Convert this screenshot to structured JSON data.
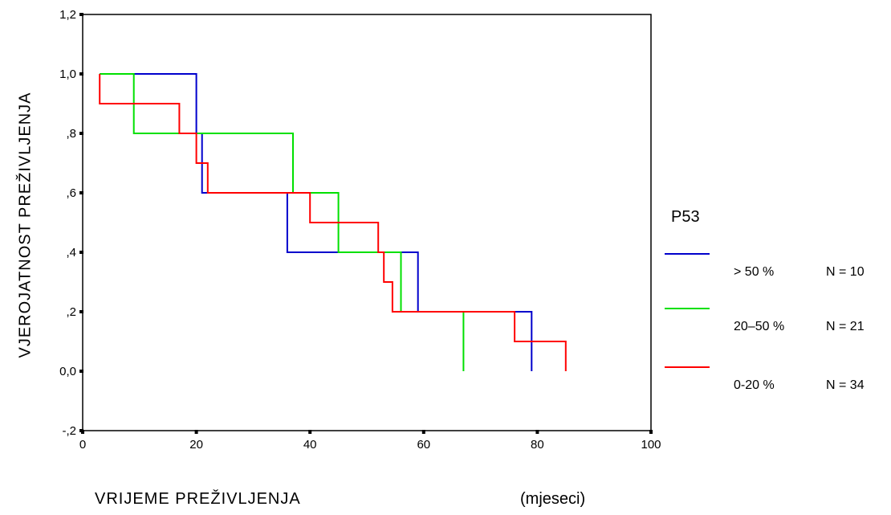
{
  "chart_data": {
    "type": "line",
    "step": true,
    "ylabel": "VJEROJATNOST   PREŽIVLJENJA",
    "xlabel": "VRIJEME  PREŽIVLJENJA",
    "xunit": "(mjeseci)",
    "xlim": [
      0,
      100
    ],
    "ylim": [
      -0.2,
      1.2
    ],
    "xticks": [
      0,
      20,
      40,
      60,
      80,
      100
    ],
    "xtick_labels": [
      "0",
      "20",
      "40",
      "60",
      "80",
      "100"
    ],
    "yticks": [
      -0.2,
      0.0,
      0.2,
      0.4,
      0.6,
      0.8,
      1.0,
      1.2
    ],
    "ytick_labels": [
      "-,2",
      "0,0",
      ",2",
      ",4",
      ",6",
      ",8",
      "1,0",
      "1,2"
    ],
    "grid": false,
    "legend": {
      "title": "P53",
      "placement": "right"
    },
    "series": [
      {
        "name": "> 50 %",
        "n_label": "N = 10",
        "color": "#0000cc",
        "points": [
          [
            3,
            1.0
          ],
          [
            20,
            1.0
          ],
          [
            20,
            0.8
          ],
          [
            21,
            0.8
          ],
          [
            21,
            0.6
          ],
          [
            36,
            0.6
          ],
          [
            36,
            0.4
          ],
          [
            59,
            0.4
          ],
          [
            59,
            0.2
          ],
          [
            79,
            0.2
          ],
          [
            79,
            0.0
          ]
        ]
      },
      {
        "name": "20–50 %",
        "n_label": "N = 21",
        "color": "#00e000",
        "points": [
          [
            3,
            1.0
          ],
          [
            9,
            1.0
          ],
          [
            9,
            0.8
          ],
          [
            37,
            0.8
          ],
          [
            37,
            0.6
          ],
          [
            45,
            0.6
          ],
          [
            45,
            0.4
          ],
          [
            56,
            0.4
          ],
          [
            56,
            0.2
          ],
          [
            67,
            0.2
          ],
          [
            67,
            0.0
          ]
        ]
      },
      {
        "name": "0-20 %",
        "n_label": "N = 34",
        "color": "#ff0000",
        "points": [
          [
            3,
            1.0
          ],
          [
            3,
            0.9
          ],
          [
            17,
            0.9
          ],
          [
            17,
            0.8
          ],
          [
            20,
            0.8
          ],
          [
            20,
            0.7
          ],
          [
            22,
            0.7
          ],
          [
            22,
            0.6
          ],
          [
            40,
            0.6
          ],
          [
            40,
            0.5
          ],
          [
            52,
            0.5
          ],
          [
            52,
            0.4
          ],
          [
            53,
            0.4
          ],
          [
            53,
            0.3
          ],
          [
            54.5,
            0.3
          ],
          [
            54.5,
            0.2
          ],
          [
            76,
            0.2
          ],
          [
            76,
            0.1
          ],
          [
            85,
            0.1
          ],
          [
            85,
            0.0
          ]
        ]
      }
    ]
  }
}
